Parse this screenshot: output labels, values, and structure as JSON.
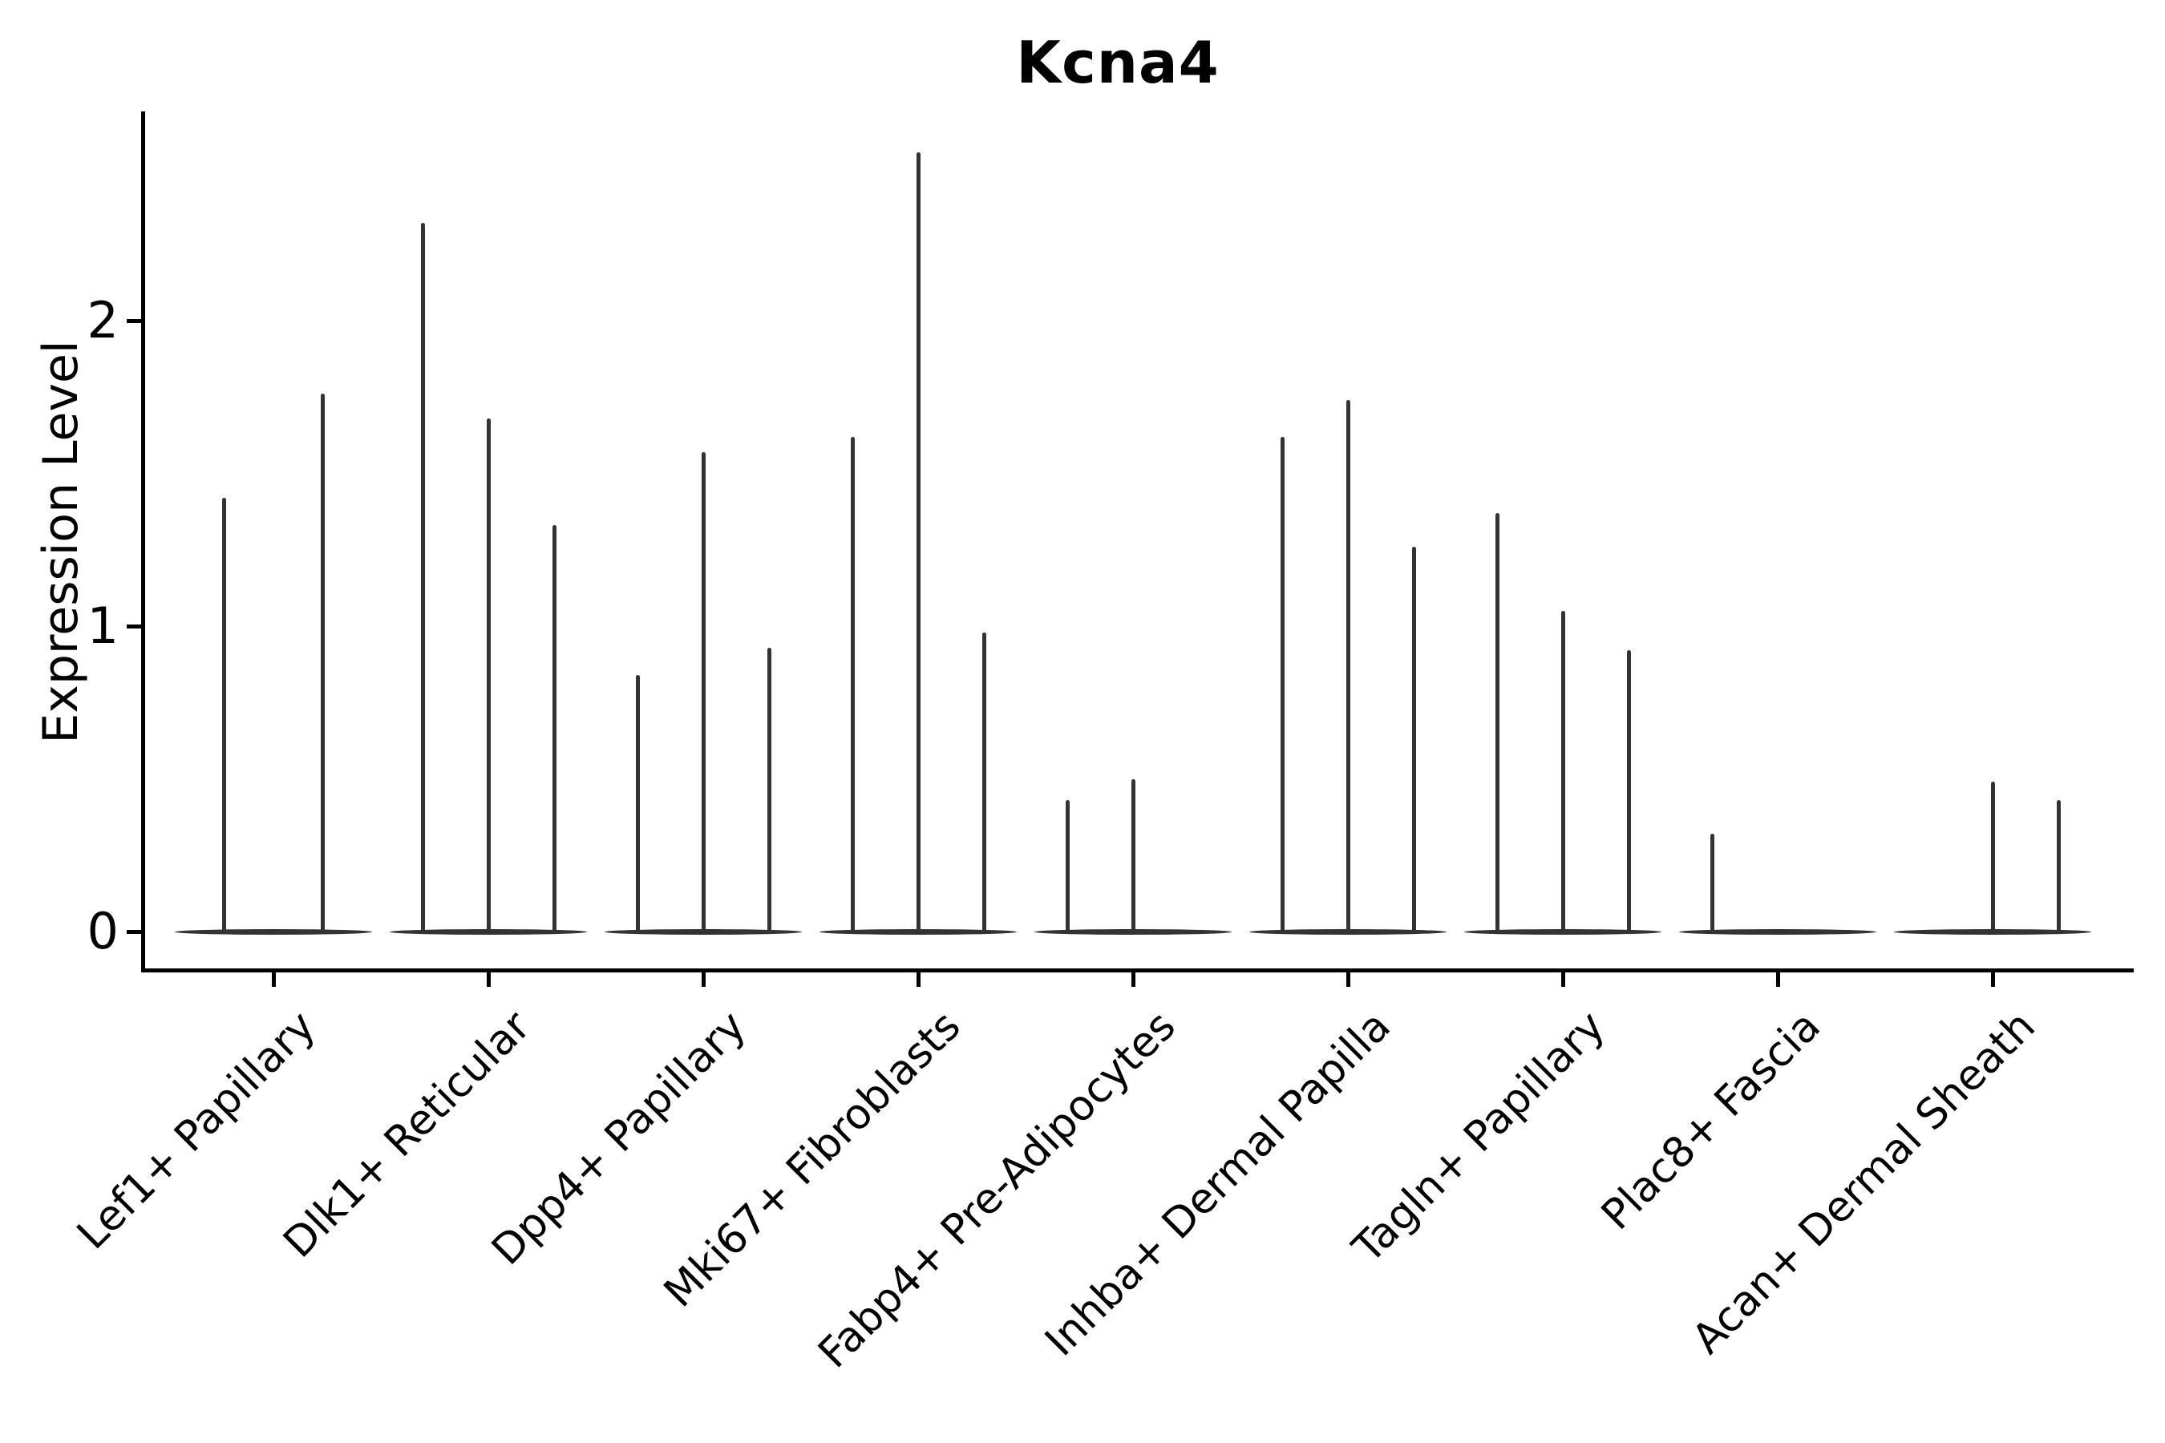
{
  "title": "Kcna4",
  "chart_data": {
    "type": "violin",
    "title": "Kcna4",
    "xlabel": "",
    "ylabel": "Expression Level",
    "yticks": [
      0,
      1,
      2
    ],
    "ylim": [
      -0.13,
      2.69
    ],
    "grid": false,
    "legend": "none",
    "description": "Stacked thin violin plot of Kcna4 expression; each cell-type group contains 2-3 narrow violins (samples). Most mass sits at 0 (flat body) with a thin spike up to the maximum expression value.",
    "colors": {
      "violin": "#333333",
      "axis": "#000000",
      "background": "#ffffff"
    },
    "groups": [
      {
        "label": "Lef1+ Papillary",
        "violin_max_values": [
          1.42,
          1.76
        ]
      },
      {
        "label": "Dlk1+ Reticular",
        "violin_max_values": [
          2.32,
          1.68,
          1.33
        ]
      },
      {
        "label": "Dpp4+ Papillary",
        "violin_max_values": [
          0.84,
          1.57,
          0.93
        ]
      },
      {
        "label": "Mki67+ Fibroblasts",
        "violin_max_values": [
          1.62,
          2.55,
          0.98
        ]
      },
      {
        "label": "Fabp4+ Pre-Adipocytes",
        "violin_max_values": [
          0.43,
          0.5,
          0
        ]
      },
      {
        "label": "Inhba+ Dermal Papilla",
        "violin_max_values": [
          1.62,
          1.74,
          1.26
        ]
      },
      {
        "label": "Tagln+ Papillary",
        "violin_max_values": [
          1.37,
          1.05,
          0.92
        ]
      },
      {
        "label": "Plac8+ Fascia",
        "violin_max_values": [
          0.32,
          0,
          0
        ]
      },
      {
        "label": "Acan+ Dermal Sheath",
        "violin_max_values": [
          0,
          0.49,
          0.43
        ]
      }
    ]
  }
}
